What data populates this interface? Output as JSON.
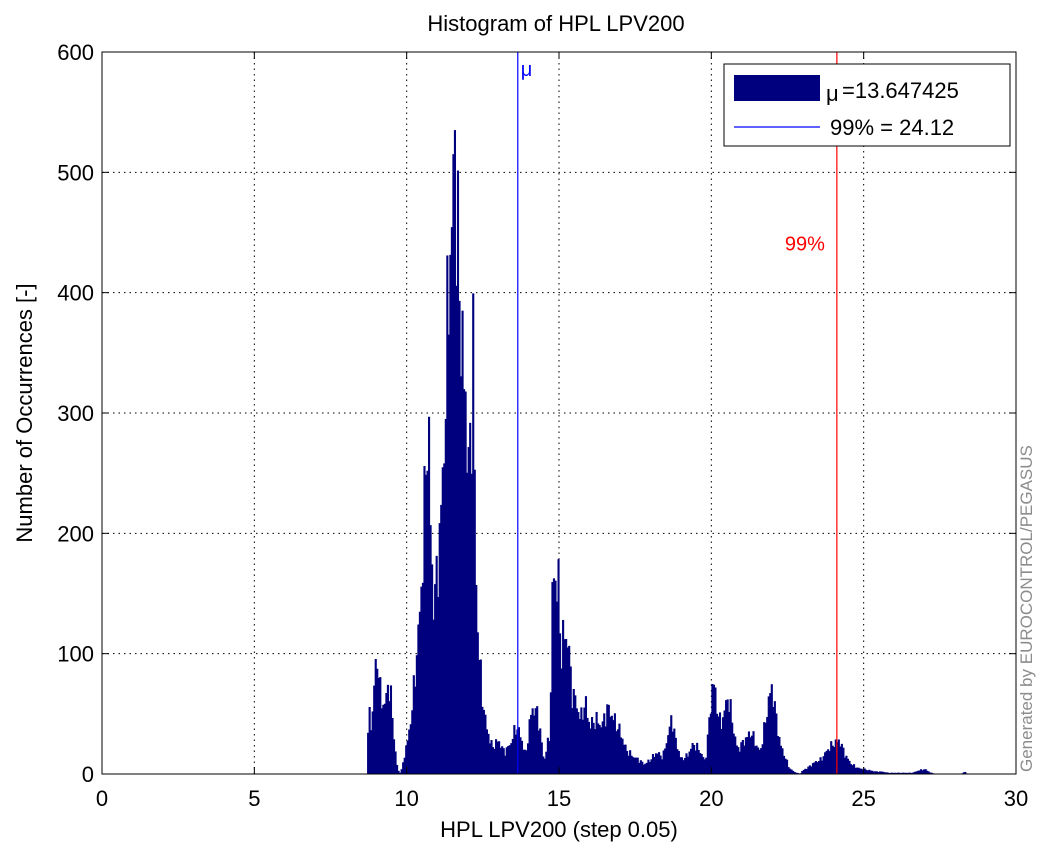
{
  "chart_data": {
    "type": "bar",
    "title": "Histogram of HPL LPV200",
    "xlabel": "HPL LPV200 (step 0.05)",
    "ylabel": "Number of Occurrences [-]",
    "xlim": [
      0,
      30
    ],
    "ylim": [
      0,
      600
    ],
    "xticks": [
      "0",
      "5",
      "10",
      "15",
      "20",
      "25",
      "30"
    ],
    "yticks": [
      "0",
      "100",
      "200",
      "300",
      "400",
      "500",
      "600"
    ],
    "grid": true,
    "bin_width": 0.05,
    "colors": {
      "bars": "#00007f",
      "mean_line": "#0000ff",
      "p99_line": "#ff0000",
      "axes": "#000000",
      "grid": "#000000"
    },
    "histogram_envelope": [
      [
        8.7,
        0
      ],
      [
        8.72,
        30
      ],
      [
        8.78,
        52
      ],
      [
        8.85,
        38
      ],
      [
        8.95,
        85
      ],
      [
        9.05,
        100
      ],
      [
        9.1,
        70
      ],
      [
        9.2,
        60
      ],
      [
        9.3,
        55
      ],
      [
        9.35,
        75
      ],
      [
        9.45,
        70
      ],
      [
        9.55,
        40
      ],
      [
        9.65,
        10
      ],
      [
        9.75,
        0
      ],
      [
        9.85,
        5
      ],
      [
        9.95,
        20
      ],
      [
        10.05,
        30
      ],
      [
        10.15,
        50
      ],
      [
        10.25,
        75
      ],
      [
        10.35,
        110
      ],
      [
        10.45,
        140
      ],
      [
        10.55,
        200
      ],
      [
        10.62,
        250
      ],
      [
        10.7,
        305
      ],
      [
        10.8,
        175
      ],
      [
        10.9,
        140
      ],
      [
        11.0,
        170
      ],
      [
        11.1,
        205
      ],
      [
        11.2,
        260
      ],
      [
        11.3,
        330
      ],
      [
        11.4,
        455
      ],
      [
        11.48,
        420
      ],
      [
        11.55,
        568
      ],
      [
        11.62,
        470
      ],
      [
        11.7,
        410
      ],
      [
        11.78,
        380
      ],
      [
        11.85,
        330
      ],
      [
        11.95,
        300
      ],
      [
        12.05,
        240
      ],
      [
        12.12,
        300
      ],
      [
        12.18,
        380
      ],
      [
        12.25,
        170
      ],
      [
        12.35,
        110
      ],
      [
        12.45,
        70
      ],
      [
        12.6,
        40
      ],
      [
        12.8,
        22
      ],
      [
        13.0,
        28
      ],
      [
        13.2,
        18
      ],
      [
        13.4,
        25
      ],
      [
        13.6,
        40
      ],
      [
        13.75,
        30
      ],
      [
        13.9,
        15
      ],
      [
        14.1,
        55
      ],
      [
        14.3,
        50
      ],
      [
        14.5,
        10
      ],
      [
        14.7,
        35
      ],
      [
        14.8,
        177
      ],
      [
        14.9,
        155
      ],
      [
        14.97,
        160
      ],
      [
        15.05,
        100
      ],
      [
        15.15,
        115
      ],
      [
        15.3,
        112
      ],
      [
        15.4,
        70
      ],
      [
        15.55,
        60
      ],
      [
        15.7,
        45
      ],
      [
        15.85,
        60
      ],
      [
        16.0,
        40
      ],
      [
        16.2,
        45
      ],
      [
        16.4,
        40
      ],
      [
        16.6,
        55
      ],
      [
        16.8,
        45
      ],
      [
        17.0,
        35
      ],
      [
        17.2,
        20
      ],
      [
        17.4,
        15
      ],
      [
        17.6,
        12
      ],
      [
        17.8,
        8
      ],
      [
        18.0,
        12
      ],
      [
        18.2,
        18
      ],
      [
        18.4,
        14
      ],
      [
        18.6,
        35
      ],
      [
        18.7,
        48
      ],
      [
        18.8,
        30
      ],
      [
        19.0,
        12
      ],
      [
        19.2,
        15
      ],
      [
        19.4,
        25
      ],
      [
        19.6,
        20
      ],
      [
        19.8,
        10
      ],
      [
        19.95,
        50
      ],
      [
        20.05,
        80
      ],
      [
        20.15,
        60
      ],
      [
        20.3,
        40
      ],
      [
        20.45,
        55
      ],
      [
        20.55,
        65
      ],
      [
        20.7,
        40
      ],
      [
        20.85,
        20
      ],
      [
        21.0,
        25
      ],
      [
        21.15,
        30
      ],
      [
        21.3,
        35
      ],
      [
        21.45,
        25
      ],
      [
        21.6,
        18
      ],
      [
        21.75,
        40
      ],
      [
        21.9,
        65
      ],
      [
        22.0,
        72
      ],
      [
        22.1,
        50
      ],
      [
        22.25,
        25
      ],
      [
        22.4,
        15
      ],
      [
        22.55,
        5
      ],
      [
        22.7,
        2
      ],
      [
        22.9,
        0
      ],
      [
        23.0,
        3
      ],
      [
        23.2,
        6
      ],
      [
        23.4,
        10
      ],
      [
        23.6,
        12
      ],
      [
        23.8,
        20
      ],
      [
        24.0,
        25
      ],
      [
        24.2,
        28
      ],
      [
        24.4,
        15
      ],
      [
        24.6,
        8
      ],
      [
        24.8,
        5
      ],
      [
        25.0,
        4
      ],
      [
        25.2,
        3
      ],
      [
        25.4,
        2
      ],
      [
        25.6,
        2
      ],
      [
        25.8,
        1
      ],
      [
        26.0,
        1
      ],
      [
        26.2,
        1
      ],
      [
        26.4,
        1
      ],
      [
        26.6,
        1
      ],
      [
        26.8,
        3
      ],
      [
        27.0,
        4
      ],
      [
        27.2,
        1
      ],
      [
        27.4,
        0
      ],
      [
        28.2,
        0
      ],
      [
        28.3,
        2
      ],
      [
        28.4,
        0
      ]
    ],
    "mean_line": {
      "value": 13.647425,
      "label": "μ"
    },
    "p99_line": {
      "value": 24.12,
      "label": "99%"
    },
    "legend": {
      "position": "top-right",
      "entries": [
        {
          "symbol": "μ",
          "text": "=13.647425",
          "style": "patch"
        },
        {
          "text": "99% = 24.12",
          "style": "line"
        }
      ]
    },
    "watermark": "Generated by EUROCONTROL/PEGASUS"
  }
}
